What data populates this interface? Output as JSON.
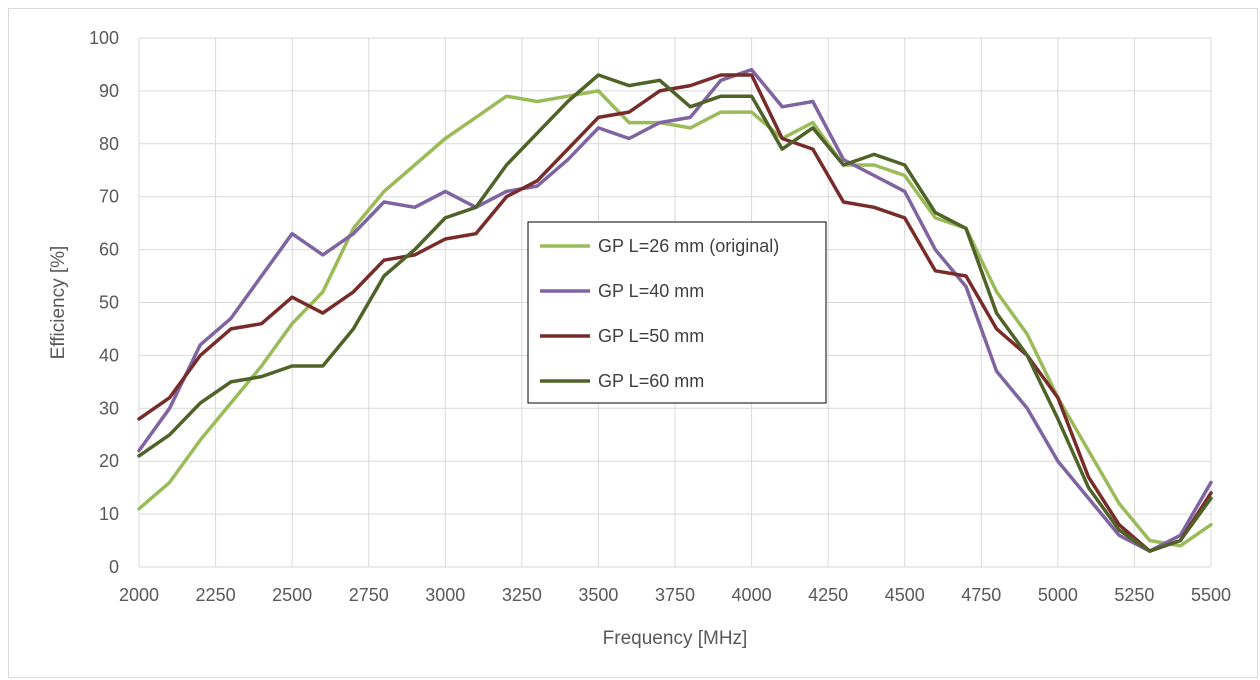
{
  "chart_data": {
    "type": "line",
    "title": "",
    "xlabel": "Frequency [MHz]",
    "ylabel": "Efficiency [%]",
    "xlim": [
      2000,
      5500
    ],
    "ylim": [
      0,
      100
    ],
    "x_ticks": [
      "2000",
      "2250",
      "2500",
      "2750",
      "3000",
      "3250",
      "3500",
      "3750",
      "4000",
      "4250",
      "4500",
      "4750",
      "5000",
      "5250",
      "5500"
    ],
    "y_ticks": [
      "0",
      "10",
      "20",
      "30",
      "40",
      "50",
      "60",
      "70",
      "80",
      "90",
      "100"
    ],
    "grid": true,
    "legend_position": "center",
    "series": [
      {
        "name": "GP L=26 mm (original)",
        "color": "#9bbb59",
        "points": [
          [
            2000,
            11
          ],
          [
            2100,
            16
          ],
          [
            2200,
            24
          ],
          [
            2300,
            31
          ],
          [
            2400,
            38
          ],
          [
            2500,
            46
          ],
          [
            2600,
            52
          ],
          [
            2700,
            64
          ],
          [
            2800,
            71
          ],
          [
            2900,
            76
          ],
          [
            3000,
            81
          ],
          [
            3100,
            85
          ],
          [
            3200,
            89
          ],
          [
            3300,
            88
          ],
          [
            3400,
            89
          ],
          [
            3500,
            90
          ],
          [
            3600,
            84
          ],
          [
            3700,
            84
          ],
          [
            3800,
            83
          ],
          [
            3900,
            86
          ],
          [
            4000,
            86
          ],
          [
            4100,
            81
          ],
          [
            4200,
            84
          ],
          [
            4300,
            76
          ],
          [
            4400,
            76
          ],
          [
            4500,
            74
          ],
          [
            4600,
            66
          ],
          [
            4700,
            64
          ],
          [
            4800,
            52
          ],
          [
            4900,
            44
          ],
          [
            5000,
            32
          ],
          [
            5100,
            22
          ],
          [
            5200,
            12
          ],
          [
            5300,
            5
          ],
          [
            5400,
            4
          ],
          [
            5500,
            8
          ]
        ]
      },
      {
        "name": "GP L=40 mm",
        "color": "#8064a2",
        "points": [
          [
            2000,
            22
          ],
          [
            2100,
            30
          ],
          [
            2200,
            42
          ],
          [
            2300,
            47
          ],
          [
            2400,
            55
          ],
          [
            2500,
            63
          ],
          [
            2600,
            59
          ],
          [
            2700,
            63
          ],
          [
            2800,
            69
          ],
          [
            2900,
            68
          ],
          [
            3000,
            71
          ],
          [
            3100,
            68
          ],
          [
            3200,
            71
          ],
          [
            3300,
            72
          ],
          [
            3400,
            77
          ],
          [
            3500,
            83
          ],
          [
            3600,
            81
          ],
          [
            3700,
            84
          ],
          [
            3800,
            85
          ],
          [
            3900,
            92
          ],
          [
            4000,
            94
          ],
          [
            4100,
            87
          ],
          [
            4200,
            88
          ],
          [
            4300,
            77
          ],
          [
            4400,
            74
          ],
          [
            4500,
            71
          ],
          [
            4600,
            60
          ],
          [
            4700,
            53
          ],
          [
            4800,
            37
          ],
          [
            4900,
            30
          ],
          [
            5000,
            20
          ],
          [
            5100,
            13
          ],
          [
            5200,
            6
          ],
          [
            5300,
            3
          ],
          [
            5400,
            6
          ],
          [
            5500,
            16
          ]
        ]
      },
      {
        "name": "GP L=50 mm",
        "color": "#772c2a",
        "points": [
          [
            2000,
            28
          ],
          [
            2100,
            32
          ],
          [
            2200,
            40
          ],
          [
            2300,
            45
          ],
          [
            2400,
            46
          ],
          [
            2500,
            51
          ],
          [
            2600,
            48
          ],
          [
            2700,
            52
          ],
          [
            2800,
            58
          ],
          [
            2900,
            59
          ],
          [
            3000,
            62
          ],
          [
            3100,
            63
          ],
          [
            3200,
            70
          ],
          [
            3300,
            73
          ],
          [
            3400,
            79
          ],
          [
            3500,
            85
          ],
          [
            3600,
            86
          ],
          [
            3700,
            90
          ],
          [
            3800,
            91
          ],
          [
            3900,
            93
          ],
          [
            4000,
            93
          ],
          [
            4100,
            81
          ],
          [
            4200,
            79
          ],
          [
            4300,
            69
          ],
          [
            4400,
            68
          ],
          [
            4500,
            66
          ],
          [
            4600,
            56
          ],
          [
            4700,
            55
          ],
          [
            4800,
            45
          ],
          [
            4900,
            40
          ],
          [
            5000,
            32
          ],
          [
            5100,
            17
          ],
          [
            5200,
            8
          ],
          [
            5300,
            3
          ],
          [
            5400,
            5
          ],
          [
            5500,
            14
          ]
        ]
      },
      {
        "name": "GP L=60 mm",
        "color": "#4f6228",
        "points": [
          [
            2000,
            21
          ],
          [
            2100,
            25
          ],
          [
            2200,
            31
          ],
          [
            2300,
            35
          ],
          [
            2400,
            36
          ],
          [
            2500,
            38
          ],
          [
            2600,
            38
          ],
          [
            2700,
            45
          ],
          [
            2800,
            55
          ],
          [
            2900,
            60
          ],
          [
            3000,
            66
          ],
          [
            3100,
            68
          ],
          [
            3200,
            76
          ],
          [
            3300,
            82
          ],
          [
            3400,
            88
          ],
          [
            3500,
            93
          ],
          [
            3600,
            91
          ],
          [
            3700,
            92
          ],
          [
            3800,
            87
          ],
          [
            3900,
            89
          ],
          [
            4000,
            89
          ],
          [
            4100,
            79
          ],
          [
            4200,
            83
          ],
          [
            4300,
            76
          ],
          [
            4400,
            78
          ],
          [
            4500,
            76
          ],
          [
            4600,
            67
          ],
          [
            4700,
            64
          ],
          [
            4800,
            48
          ],
          [
            4900,
            40
          ],
          [
            5000,
            28
          ],
          [
            5100,
            15
          ],
          [
            5200,
            7
          ],
          [
            5300,
            3
          ],
          [
            5400,
            5
          ],
          [
            5500,
            13
          ]
        ]
      }
    ]
  }
}
